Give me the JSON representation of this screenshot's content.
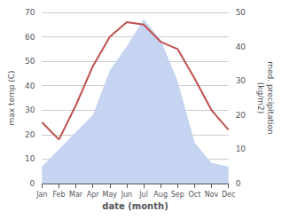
{
  "chart_data": {
    "type": "line",
    "categories": [
      "Jan",
      "Feb",
      "Mar",
      "Apr",
      "May",
      "Jun",
      "Jul",
      "Aug",
      "Sep",
      "Oct",
      "Nov",
      "Dec"
    ],
    "series": [
      {
        "type": "area",
        "axis": "y2",
        "color": "#c5d4f0",
        "values": [
          5,
          10,
          15,
          20,
          33,
          40,
          48,
          42,
          30,
          12,
          6,
          5
        ]
      },
      {
        "type": "line",
        "color": "#c0504d",
        "values": [
          25,
          18,
          32,
          48,
          60,
          66,
          65,
          58,
          55,
          43,
          30,
          22
        ]
      }
    ],
    "xlabel": "date (month)",
    "ylabel": "max temp (C)",
    "y2label": "med. precipitation\n(kg/m2)",
    "ylim": [
      0,
      70
    ],
    "yticks": [
      0,
      10,
      20,
      30,
      40,
      50,
      60,
      70
    ],
    "y2lim": [
      0,
      50
    ],
    "y2ticks": [
      0,
      10,
      20,
      30,
      40,
      50
    ],
    "grid": true
  }
}
